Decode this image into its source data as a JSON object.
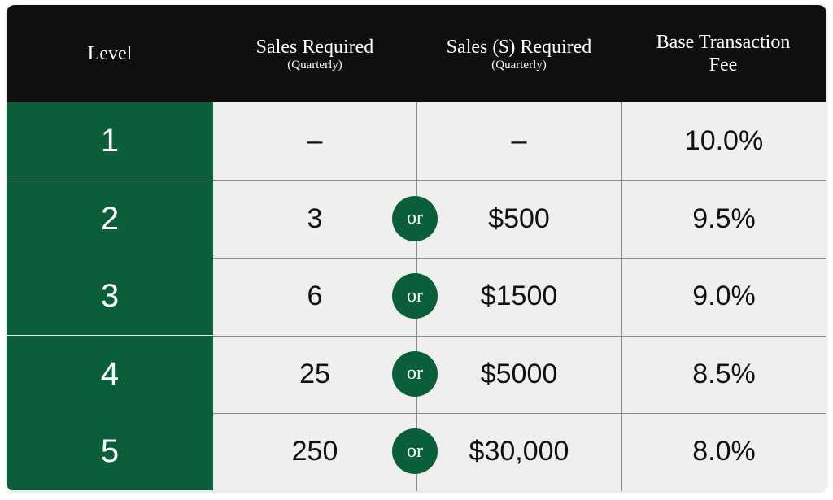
{
  "table": {
    "header": [
      {
        "title": "Level"
      },
      {
        "title": "Sales Required",
        "subtitle": "(Quarterly)"
      },
      {
        "title": "Sales ($) Required",
        "subtitle": "(Quarterly)"
      },
      {
        "title": "Base Transaction Fee"
      }
    ],
    "rows": [
      {
        "level": "1",
        "sales": "–",
        "dollars": "–",
        "fee": "10.0%"
      },
      {
        "level": "2",
        "sales": "3",
        "connector": "or",
        "dollars": "$500",
        "fee": "9.5%"
      },
      {
        "level": "3",
        "sales": "6",
        "connector": "or",
        "dollars": "$1500",
        "fee": "9.0%"
      },
      {
        "level": "4",
        "sales": "25",
        "connector": "or",
        "dollars": "$5000",
        "fee": "8.5%"
      },
      {
        "level": "5",
        "sales": "250",
        "connector": "or",
        "dollars": "$30,000",
        "fee": "8.0%"
      }
    ]
  }
}
